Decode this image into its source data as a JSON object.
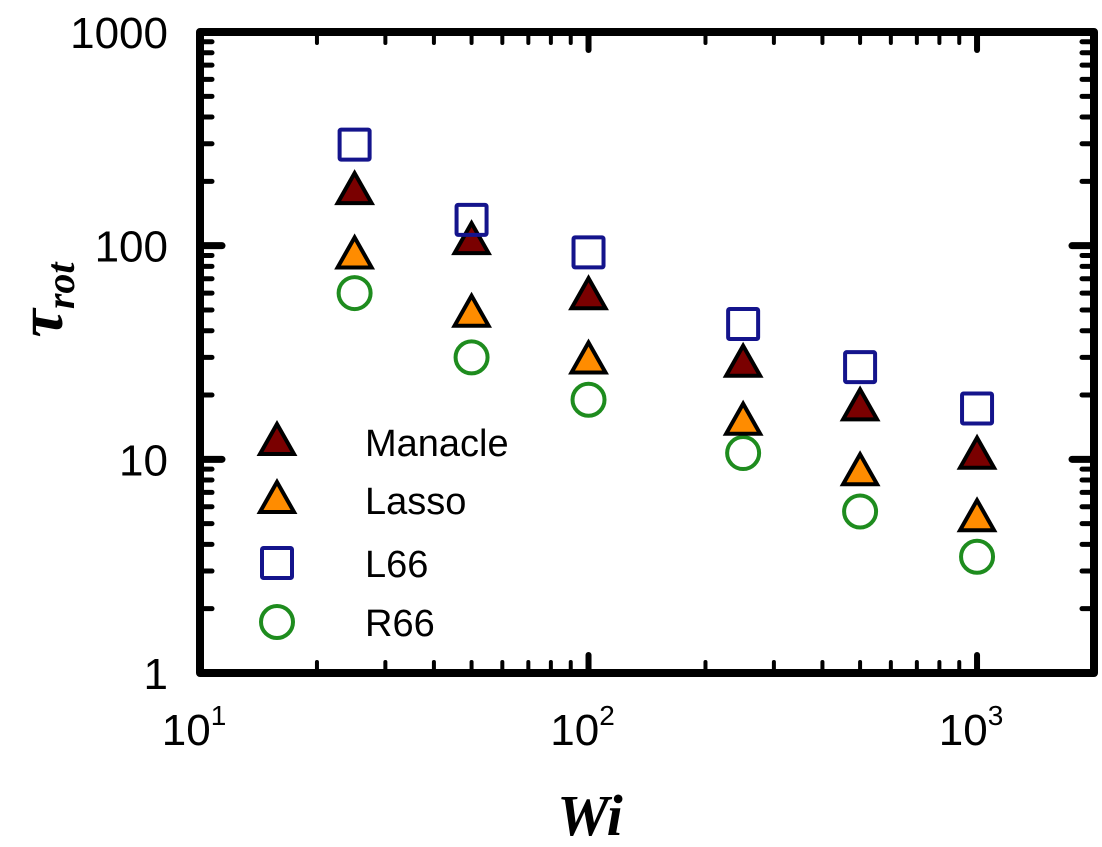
{
  "chart_data": {
    "type": "scatter",
    "title": "",
    "xlabel": "Wi",
    "ylabel": {
      "main": "τ",
      "sub": "rot"
    },
    "xscale": "log",
    "yscale": "log",
    "xlim": [
      10,
      2000
    ],
    "ylim": [
      1,
      1000
    ],
    "grid": false,
    "legend_position": "bottom-left",
    "x_ticks": [
      {
        "value": 10,
        "base": "10",
        "exp": "1"
      },
      {
        "value": 100,
        "base": "10",
        "exp": "2"
      },
      {
        "value": 1000,
        "base": "10",
        "exp": "3"
      }
    ],
    "y_ticks": [
      {
        "value": 1,
        "label": "1"
      },
      {
        "value": 10,
        "label": "10"
      },
      {
        "value": 100,
        "label": "100"
      },
      {
        "value": 1000,
        "label": "1000"
      }
    ],
    "x": [
      25,
      50,
      100,
      250,
      500,
      1000
    ],
    "series": [
      {
        "name": "Manacle",
        "marker": "triangle",
        "fill": "#7a0000",
        "stroke": "#000000",
        "values": [
          180,
          105,
          58,
          28,
          17.5,
          10.4
        ]
      },
      {
        "name": "Lasso",
        "marker": "triangle",
        "fill": "#ff8c00",
        "stroke": "#000000",
        "values": [
          90,
          48,
          29,
          15,
          8.7,
          5.3
        ]
      },
      {
        "name": "L66",
        "marker": "square",
        "fill": "none",
        "stroke": "#14148c",
        "values": [
          297,
          132,
          93,
          43,
          27,
          17.3
        ]
      },
      {
        "name": "R66",
        "marker": "circle",
        "fill": "none",
        "stroke": "#1e8c1e",
        "values": [
          60,
          30,
          19,
          10.7,
          5.7,
          3.5
        ]
      }
    ]
  }
}
